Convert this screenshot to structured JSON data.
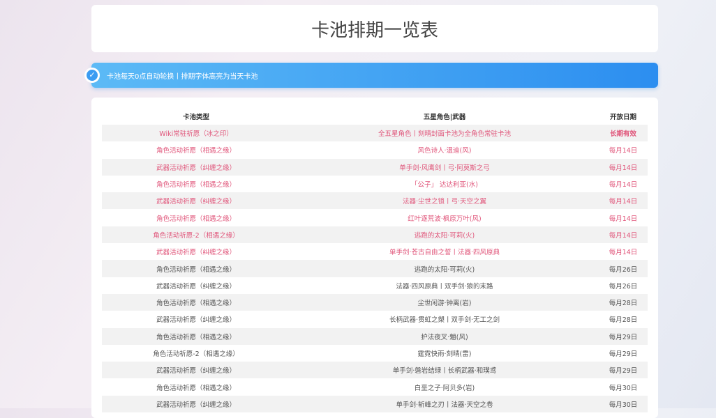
{
  "title": "卡池排期一览表",
  "banner": {
    "icon": "check-circle-icon",
    "text": "卡池每天0点自动轮换丨排期字体高亮为当天卡池"
  },
  "colors": {
    "highlight": "#e0557a",
    "banner_start": "#5cbaf6",
    "banner_end": "#2c8ef0"
  },
  "table": {
    "headers": [
      "卡池类型",
      "五星角色|武器",
      "开放日期"
    ],
    "rows": [
      {
        "type": "Wiki常驻祈愿（冰之印）",
        "five_star": "全五星角色丨刻晴封面卡池为全角色常驻卡池",
        "date": "长期有效",
        "highlight": true
      },
      {
        "type": "角色活动祈愿（相遇之缘）",
        "five_star": "风色诗人·温迪(风)",
        "date": "每月14日",
        "highlight": true
      },
      {
        "type": "武器活动祈愿（纠缠之缘）",
        "five_star": "单手剑·风鹰剑丨弓·阿莫斯之弓",
        "date": "每月14日",
        "highlight": true
      },
      {
        "type": "角色活动祈愿（相遇之缘）",
        "five_star": "「公子」 达达利亚(水)",
        "date": "每月14日",
        "highlight": true
      },
      {
        "type": "武器活动祈愿（纠缠之缘）",
        "five_star": "法器·尘世之锁丨弓·天空之翼",
        "date": "每月14日",
        "highlight": true
      },
      {
        "type": "角色活动祈愿（相遇之缘）",
        "five_star": "红叶逐荒波·枫原万叶(风)",
        "date": "每月14日",
        "highlight": true
      },
      {
        "type": "角色活动祈愿-2（相遇之缘）",
        "five_star": "逃跑的太阳·可莉(火)",
        "date": "每月14日",
        "highlight": true
      },
      {
        "type": "武器活动祈愿（纠缠之缘）",
        "five_star": "单手剑·苍古自由之誓丨法器·四风原典",
        "date": "每月14日",
        "highlight": true
      },
      {
        "type": "角色活动祈愿（相遇之缘）",
        "five_star": "逃跑的太阳·可莉(火)",
        "date": "每月26日",
        "highlight": false
      },
      {
        "type": "武器活动祈愿（纠缠之缘）",
        "five_star": "法器·四风原典丨双手剑·狼的末路",
        "date": "每月26日",
        "highlight": false
      },
      {
        "type": "角色活动祈愿（相遇之缘）",
        "five_star": "尘世闲游·钟离(岩)",
        "date": "每月28日",
        "highlight": false
      },
      {
        "type": "武器活动祈愿（纠缠之缘）",
        "five_star": "长柄武器·贯虹之槊丨双手剑·无工之剑",
        "date": "每月28日",
        "highlight": false
      },
      {
        "type": "角色活动祈愿（相遇之缘）",
        "five_star": "护法夜叉·魈(风)",
        "date": "每月29日",
        "highlight": false
      },
      {
        "type": "角色活动祈愿-2（相遇之缘）",
        "five_star": "霆霓快雨·刻晴(雷)",
        "date": "每月29日",
        "highlight": false
      },
      {
        "type": "武器活动祈愿（纠缠之缘）",
        "five_star": "单手剑·磐岩结绿丨长柄武器·和璞鸢",
        "date": "每月29日",
        "highlight": false
      },
      {
        "type": "角色活动祈愿（相遇之缘）",
        "five_star": "白垩之子·阿贝多(岩)",
        "date": "每月30日",
        "highlight": false
      },
      {
        "type": "武器活动祈愿（纠缠之缘）",
        "five_star": "单手剑·斩峰之刃丨法器·天空之卷",
        "date": "每月30日",
        "highlight": false
      }
    ]
  }
}
